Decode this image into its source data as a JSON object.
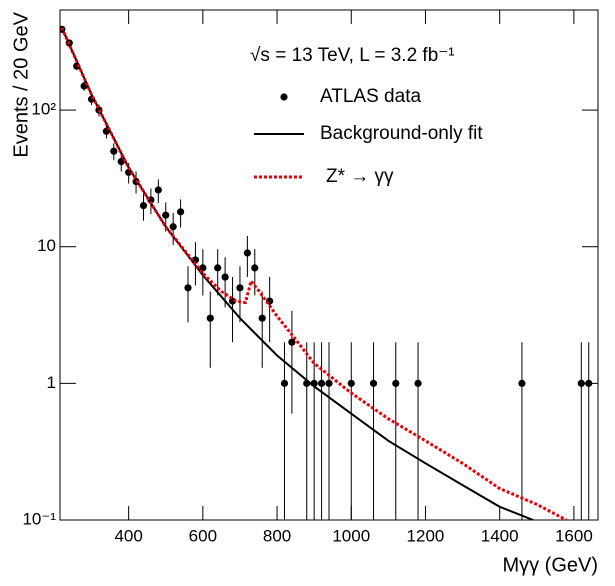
{
  "chart_data": {
    "type": "line",
    "x_label": "Mγγ (GeV)",
    "y_label": "Events / 20 GeV",
    "annotation": "√s = 13 TeV, L = 3.2 fb⁻¹",
    "xlim": [
      215,
      1665
    ],
    "xticks": [
      400,
      600,
      800,
      1000,
      1200,
      1400,
      1600
    ],
    "ylim": [
      0.1,
      540
    ],
    "ylog": true,
    "yticks": [
      {
        "value": 0.1,
        "label": "10⁻¹"
      },
      1,
      10,
      {
        "value": 100,
        "label": "10²"
      }
    ],
    "series": [
      {
        "name": "ATLAS data",
        "color": "#000000",
        "style": "points",
        "x": [
          220,
          240,
          260,
          280,
          300,
          320,
          340,
          360,
          380,
          400,
          420,
          440,
          460,
          480,
          500,
          520,
          540,
          560,
          580,
          600,
          620,
          640,
          660,
          680,
          700,
          720,
          740,
          760,
          780,
          820,
          840,
          880,
          900,
          920,
          940,
          1000,
          1060,
          1120,
          1180,
          1460,
          1620,
          1640
        ],
        "values": [
          390,
          310,
          210,
          150,
          120,
          100,
          70,
          50,
          42,
          35,
          30,
          20,
          22,
          26,
          17,
          14,
          18,
          5,
          8,
          7,
          3,
          7,
          6,
          4,
          5,
          9,
          7,
          3,
          4,
          1,
          2,
          1,
          1,
          1,
          1,
          1,
          1,
          1,
          1,
          1,
          1,
          1
        ],
        "yerr": [
          20,
          18,
          14,
          12,
          11,
          10,
          8,
          7,
          6.5,
          6,
          5.5,
          4.5,
          4.7,
          5.1,
          4.1,
          3.7,
          4.2,
          2.2,
          2.8,
          2.6,
          1.7,
          2.6,
          2.4,
          2,
          2.2,
          3,
          2.6,
          1.7,
          2,
          1,
          1.4,
          1,
          1,
          1,
          1,
          1,
          1,
          1,
          1,
          1,
          1,
          1
        ]
      },
      {
        "name": "Background-only fit",
        "color": "#000000",
        "style": "solid",
        "x": [
          220,
          300,
          400,
          500,
          600,
          700,
          800,
          900,
          1000,
          1100,
          1200,
          1300,
          1400,
          1490
        ],
        "values": [
          400,
          130,
          38,
          14,
          6.2,
          3.0,
          1.6,
          0.95,
          0.6,
          0.38,
          0.26,
          0.18,
          0.125,
          0.1
        ]
      },
      {
        "name": "Z* → γγ",
        "color": "#e8000b",
        "style": "dashed",
        "x": [
          220,
          300,
          400,
          500,
          600,
          650,
          690,
          715,
          730,
          750,
          800,
          850,
          900,
          1000,
          1100,
          1200,
          1300,
          1400,
          1500,
          1580
        ],
        "values": [
          400,
          130,
          38,
          14,
          6.4,
          4.7,
          4.0,
          3.9,
          5.6,
          4.8,
          3.1,
          2.1,
          1.4,
          0.85,
          0.55,
          0.38,
          0.26,
          0.17,
          0.13,
          0.1
        ]
      }
    ]
  }
}
